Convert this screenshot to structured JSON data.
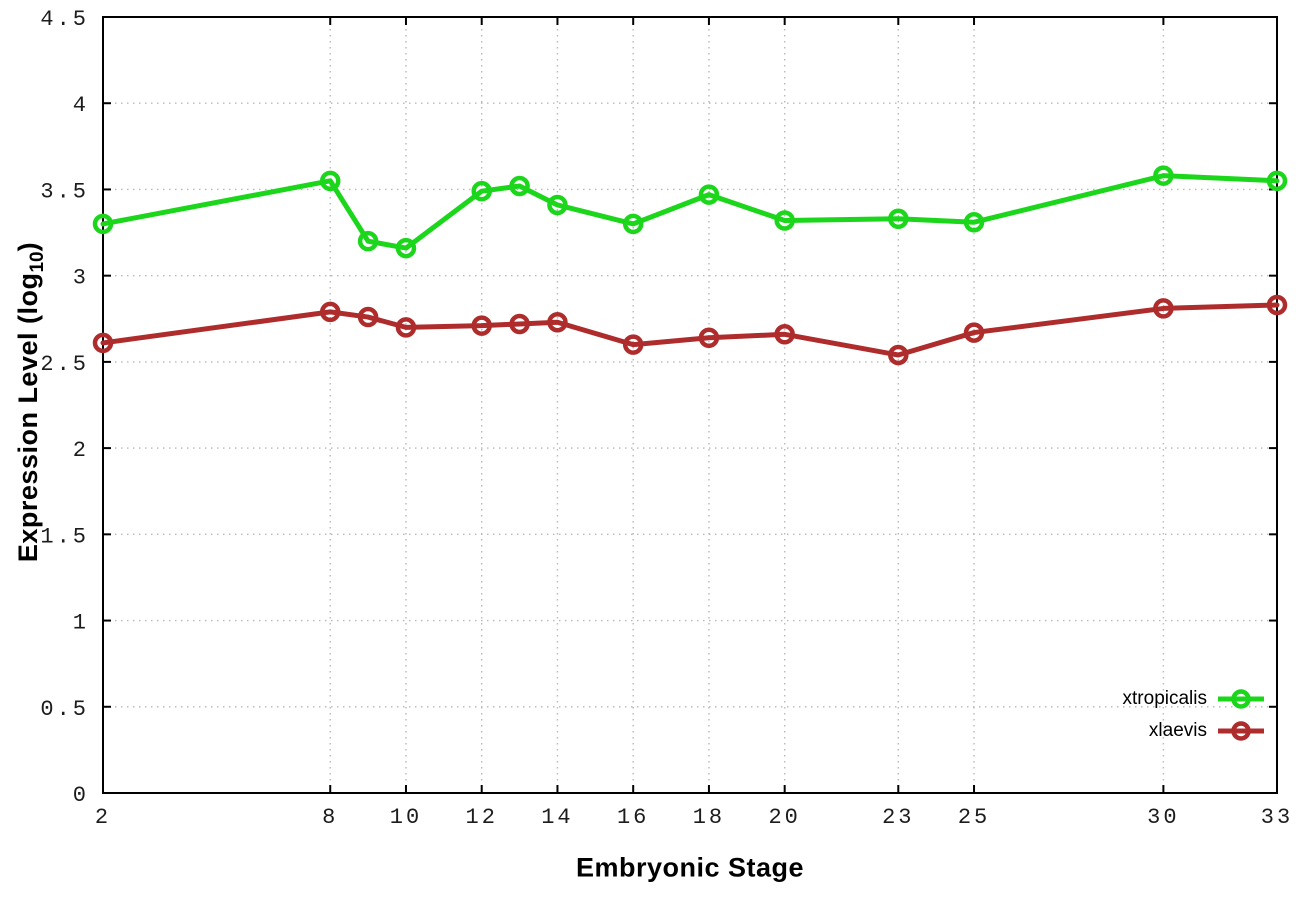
{
  "chart_data": {
    "type": "line",
    "title": "",
    "xlabel": "Embryonic Stage",
    "ylabel": {
      "text": "Expression Level (log",
      "sub": "10",
      "suffix": ")"
    },
    "xlim": [
      2,
      33
    ],
    "ylim": [
      0,
      4.5
    ],
    "xticks": [
      2,
      8,
      10,
      12,
      14,
      16,
      18,
      20,
      23,
      25,
      30,
      33
    ],
    "xtick_labels": [
      "2",
      "8",
      "10",
      "12",
      "14",
      "16",
      "18",
      "20",
      "23",
      "25",
      "30",
      "33"
    ],
    "yticks": [
      0,
      0.5,
      1,
      1.5,
      2,
      2.5,
      3,
      3.5,
      4,
      4.5
    ],
    "ytick_labels": [
      "0",
      "0.5",
      "1",
      "1.5",
      "2",
      "2.5",
      "3",
      "3.5",
      "4",
      "4.5"
    ],
    "grid": true,
    "legend_position": "bottom-right-inside",
    "x": [
      2,
      8,
      9,
      10,
      12,
      13,
      14,
      16,
      18,
      20,
      23,
      25,
      30,
      33
    ],
    "series": [
      {
        "name": "xtropicalis",
        "color": "#1bd61b",
        "marker": "open-circle",
        "values": [
          3.3,
          3.55,
          3.2,
          3.16,
          3.49,
          3.52,
          3.41,
          3.3,
          3.47,
          3.32,
          3.33,
          3.31,
          3.58,
          3.55
        ]
      },
      {
        "name": "xlaevis",
        "color": "#ae2c2c",
        "marker": "open-circle",
        "values": [
          2.61,
          2.79,
          2.76,
          2.7,
          2.71,
          2.72,
          2.73,
          2.6,
          2.64,
          2.66,
          2.54,
          2.67,
          2.81,
          2.83
        ]
      }
    ],
    "style": {
      "border_color": "#000000",
      "grid_color": "#b9b9b9",
      "tick_label_color": "#1c1c1c",
      "background": "#ffffff"
    }
  }
}
